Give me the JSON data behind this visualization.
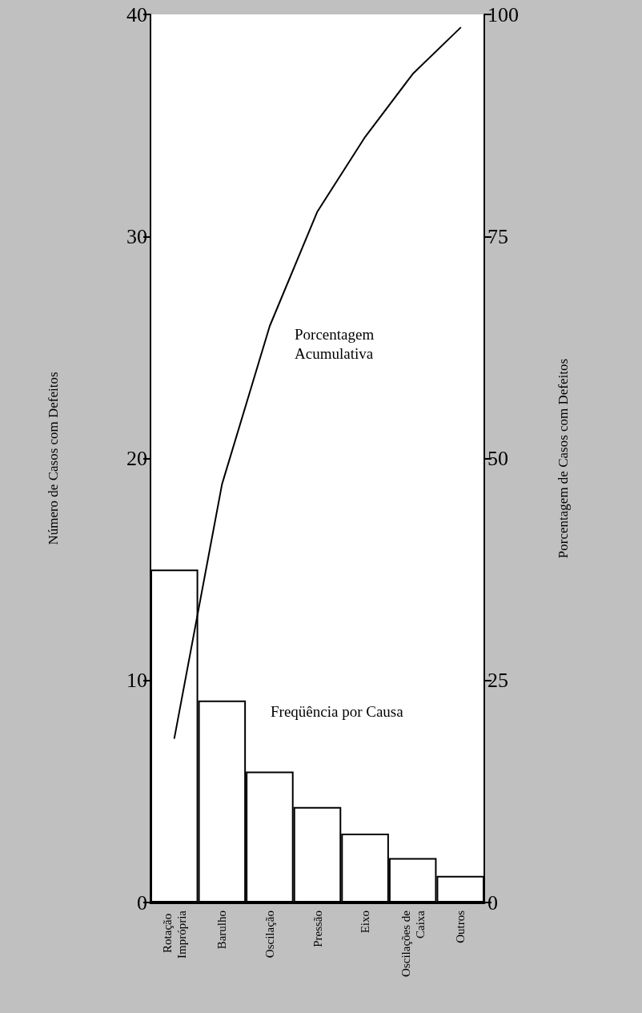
{
  "chart_data": {
    "type": "bar",
    "categories": [
      "Rotação Imprópria",
      "Barulho",
      "Oscilação",
      "Pressão",
      "Eixo",
      "Oscilações de Caixa",
      "Outros"
    ],
    "ylabel": "Número de Casos com Defeitos",
    "y2label": "Porcentagem de Casos com Defeitos",
    "ylim": [
      0,
      40
    ],
    "yticks": [
      0,
      10,
      20,
      30,
      40
    ],
    "y2lim": [
      0,
      100
    ],
    "y2ticks": [
      0,
      25,
      50,
      75,
      100
    ],
    "series": [
      {
        "color": "#ffffff",
        "values": [
          15,
          9.1,
          5.9,
          4.3,
          3.1,
          2,
          1.2
        ]
      },
      {
        "type": "line",
        "axis": "y2",
        "color": "#000000",
        "marker": "none",
        "values": [
          18.5,
          47.1,
          64.9,
          77.8,
          86.2,
          93.3,
          98.5
        ]
      }
    ],
    "annotations": [
      "Porcentagem Acumulativa",
      "Freqüência por Causa"
    ]
  }
}
